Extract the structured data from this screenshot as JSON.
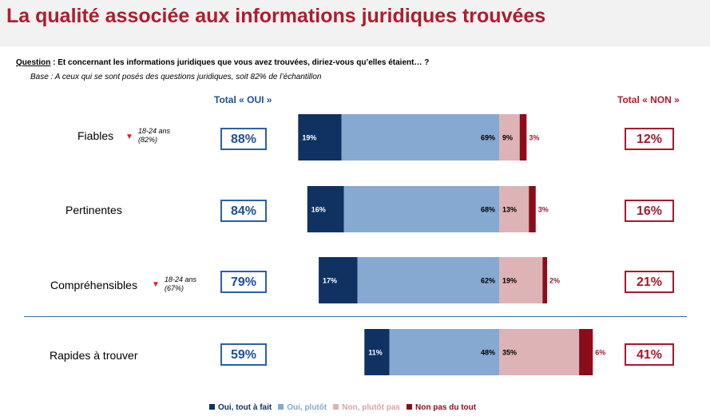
{
  "title": "La qualité associée aux informations juridiques trouvées",
  "question": {
    "label": "Question",
    "text": " : Et concernant les informations juridiques que vous avez trouvées, diriez-vous qu’elles étaient… ?"
  },
  "base": "Base : A ceux qui se sont posés des questions juridiques, soit 82% de l’échantillon",
  "headers": {
    "oui": "Total « OUI »",
    "non": "Total « NON »"
  },
  "rows": [
    {
      "label": "Fiables",
      "note": [
        "18-24 ans",
        "(82%)"
      ],
      "marker": "down-triangle-icon",
      "total_oui": "88%",
      "total_non": "12%"
    },
    {
      "label": "Pertinentes",
      "note": null,
      "marker": null,
      "total_oui": "84%",
      "total_non": "16%"
    },
    {
      "label": "Compréhensibles",
      "note": [
        "18-24 ans",
        "(67%)"
      ],
      "marker": "down-triangle-icon",
      "total_oui": "79%",
      "total_non": "21%"
    },
    {
      "label": "Rapides à trouver",
      "note": null,
      "marker": null,
      "total_oui": "59%",
      "total_non": "41%"
    }
  ],
  "chart_data": {
    "type": "bar",
    "stacked": true,
    "orientation": "horizontal",
    "layout": "diverging",
    "categories": [
      "Fiables",
      "Pertinentes",
      "Compréhensibles",
      "Rapides à trouver"
    ],
    "series": [
      {
        "name": "Oui, tout à fait",
        "color": "#0f3263",
        "values": [
          19,
          16,
          17,
          11
        ],
        "labels": [
          "19%",
          "16%",
          "17%",
          "11%"
        ]
      },
      {
        "name": "Oui, plutôt",
        "color": "#85a9d1",
        "values": [
          69,
          68,
          62,
          48
        ],
        "labels": [
          "69%",
          "68%",
          "62%",
          "48%"
        ]
      },
      {
        "name": "Non, plutôt pas",
        "color": "#ddb3b6",
        "values": [
          9,
          13,
          19,
          35
        ],
        "labels": [
          "9%",
          "13%",
          "19%",
          "35%"
        ]
      },
      {
        "name": "Non pas du tout",
        "color": "#8c0d1a",
        "values": [
          3,
          3,
          2,
          6
        ],
        "labels": [
          "3%",
          "3%",
          "2%",
          "6%"
        ]
      }
    ],
    "legend_position": "bottom"
  }
}
